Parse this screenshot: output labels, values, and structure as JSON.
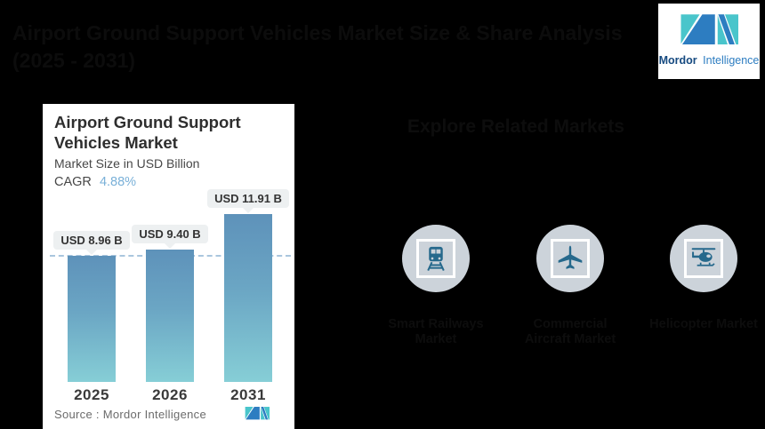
{
  "header": {
    "title_line1": "Airport Ground Support Vehicles Market Size & Share Analysis",
    "title_line2": "(2025 - 2031)"
  },
  "brand": {
    "name_bold": "Mordor",
    "name_light": "Intelligence"
  },
  "chart_card": {
    "title": "Airport Ground Support Vehicles Market",
    "subtitle": "Market Size in USD Billion",
    "cagr_label": "CAGR",
    "cagr_value": "4.88%",
    "source_label": "Source :  Mordor Intelligence"
  },
  "chart_data": {
    "type": "bar",
    "title": "Airport Ground Support Vehicles Market",
    "ylabel": "Market Size in USD Billion",
    "unit": "USD Billion",
    "cagr": "4.88%",
    "categories": [
      "2025",
      "2026",
      "2031"
    ],
    "values": [
      8.96,
      9.4,
      11.91
    ],
    "value_labels": [
      "USD 8.96 B",
      "USD 9.40 B",
      "USD 11.91 B"
    ],
    "ylim": [
      0,
      12.5
    ],
    "grid": "off",
    "reference_line": "dashed horizontal line at 2025 value (8.96)",
    "legend": "none",
    "bar_gradient_top": "#5e92ba",
    "bar_gradient_bottom": "#86ced6"
  },
  "related_markets": {
    "heading": "Explore Related Markets",
    "items": [
      {
        "icon": "train-icon",
        "label": "Smart Railways Market"
      },
      {
        "icon": "airplane-icon",
        "label": "Commercial Aircraft Market"
      },
      {
        "icon": "helicopter-icon",
        "label": "Helicopter Market"
      }
    ]
  },
  "colors": {
    "background": "#000000",
    "card_bg": "#ffffff",
    "accent_blue": "#79b0d8",
    "bar_top": "#5e92ba",
    "bar_bottom": "#86ced6",
    "circle_bg": "#ccd3da",
    "icon_teal": "#26698c",
    "brand_teal": "#49c5cb",
    "brand_blue": "#2d7dc1",
    "brand_dark": "#164a80",
    "dashed_line": "#aac6de"
  }
}
